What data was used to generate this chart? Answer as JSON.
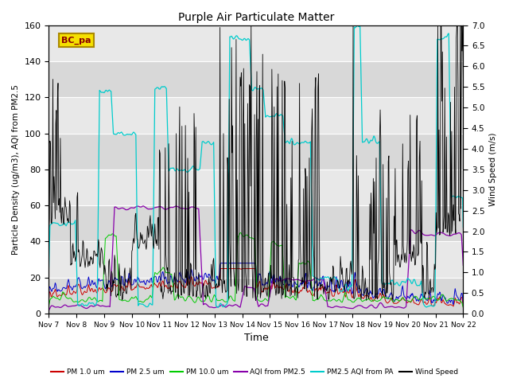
{
  "title": "Purple Air Particulate Matter",
  "ylabel_left": "Particle Density (ug/m3), AQI from PM2.5",
  "ylabel_right": "Wind Speed (m/s)",
  "xlabel": "Time",
  "ylim_left": [
    0,
    160
  ],
  "ylim_right": [
    0.0,
    7.0
  ],
  "yticks_left": [
    0,
    20,
    40,
    60,
    80,
    100,
    120,
    140,
    160
  ],
  "yticks_right": [
    0.0,
    0.5,
    1.0,
    1.5,
    2.0,
    2.5,
    3.0,
    3.5,
    4.0,
    4.5,
    5.0,
    5.5,
    6.0,
    6.5,
    7.0
  ],
  "xtick_labels": [
    "Nov 7",
    "Nov 8",
    "Nov 9",
    "Nov 10",
    "Nov 11",
    "Nov 12",
    "Nov 13",
    "Nov 14",
    "Nov 15",
    "Nov 16",
    "Nov 17",
    "Nov 18",
    "Nov 19",
    "Nov 20",
    "Nov 21",
    "Nov 22"
  ],
  "legend_labels": [
    "PM 1.0 um",
    "PM 2.5 um",
    "PM 10.0 um",
    "AQI from PM2.5",
    "PM2.5 AQI from PA",
    "Wind Speed"
  ],
  "legend_colors": [
    "#cc0000",
    "#0000cc",
    "#00cc00",
    "#8800aa",
    "#00cccc",
    "#000000"
  ],
  "annotation_text": "BC_pa",
  "plot_bg_dark": "#d8d8d8",
  "plot_bg_light": "#e8e8e8",
  "n_points": 720,
  "seed": 42
}
